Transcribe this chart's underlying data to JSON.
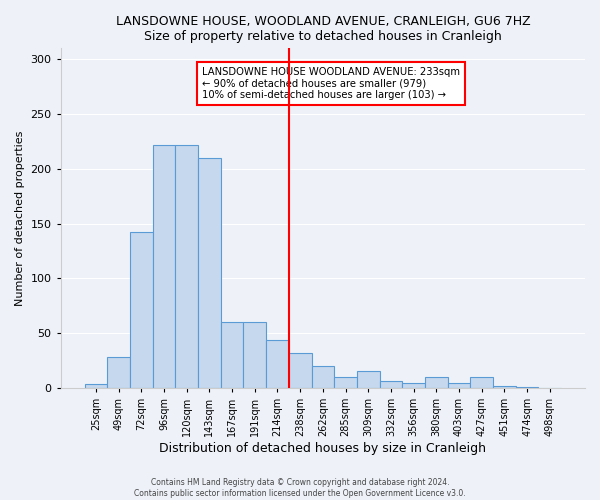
{
  "title": "LANSDOWNE HOUSE, WOODLAND AVENUE, CRANLEIGH, GU6 7HZ",
  "subtitle": "Size of property relative to detached houses in Cranleigh",
  "xlabel": "Distribution of detached houses by size in Cranleigh",
  "ylabel": "Number of detached properties",
  "bar_labels": [
    "25sqm",
    "49sqm",
    "72sqm",
    "96sqm",
    "120sqm",
    "143sqm",
    "167sqm",
    "191sqm",
    "214sqm",
    "238sqm",
    "262sqm",
    "285sqm",
    "309sqm",
    "332sqm",
    "356sqm",
    "380sqm",
    "403sqm",
    "427sqm",
    "451sqm",
    "474sqm",
    "498sqm"
  ],
  "bar_values": [
    4,
    28,
    142,
    222,
    222,
    210,
    60,
    60,
    44,
    32,
    20,
    10,
    16,
    6,
    5,
    10,
    5,
    10,
    2,
    1,
    0
  ],
  "bar_color": "#c5d8ed",
  "bar_edge_color": "#5b9bd5",
  "vline_x": 8.5,
  "vline_color": "red",
  "annotation_title": "LANSDOWNE HOUSE WOODLAND AVENUE: 233sqm",
  "annotation_line1": "← 90% of detached houses are smaller (979)",
  "annotation_line2": "10% of semi-detached houses are larger (103) →",
  "annotation_box_edge": "red",
  "ylim": [
    0,
    310
  ],
  "yticks": [
    0,
    50,
    100,
    150,
    200,
    250,
    300
  ],
  "footer1": "Contains HM Land Registry data © Crown copyright and database right 2024.",
  "footer2": "Contains public sector information licensed under the Open Government Licence v3.0.",
  "bg_color": "#eef2f8"
}
